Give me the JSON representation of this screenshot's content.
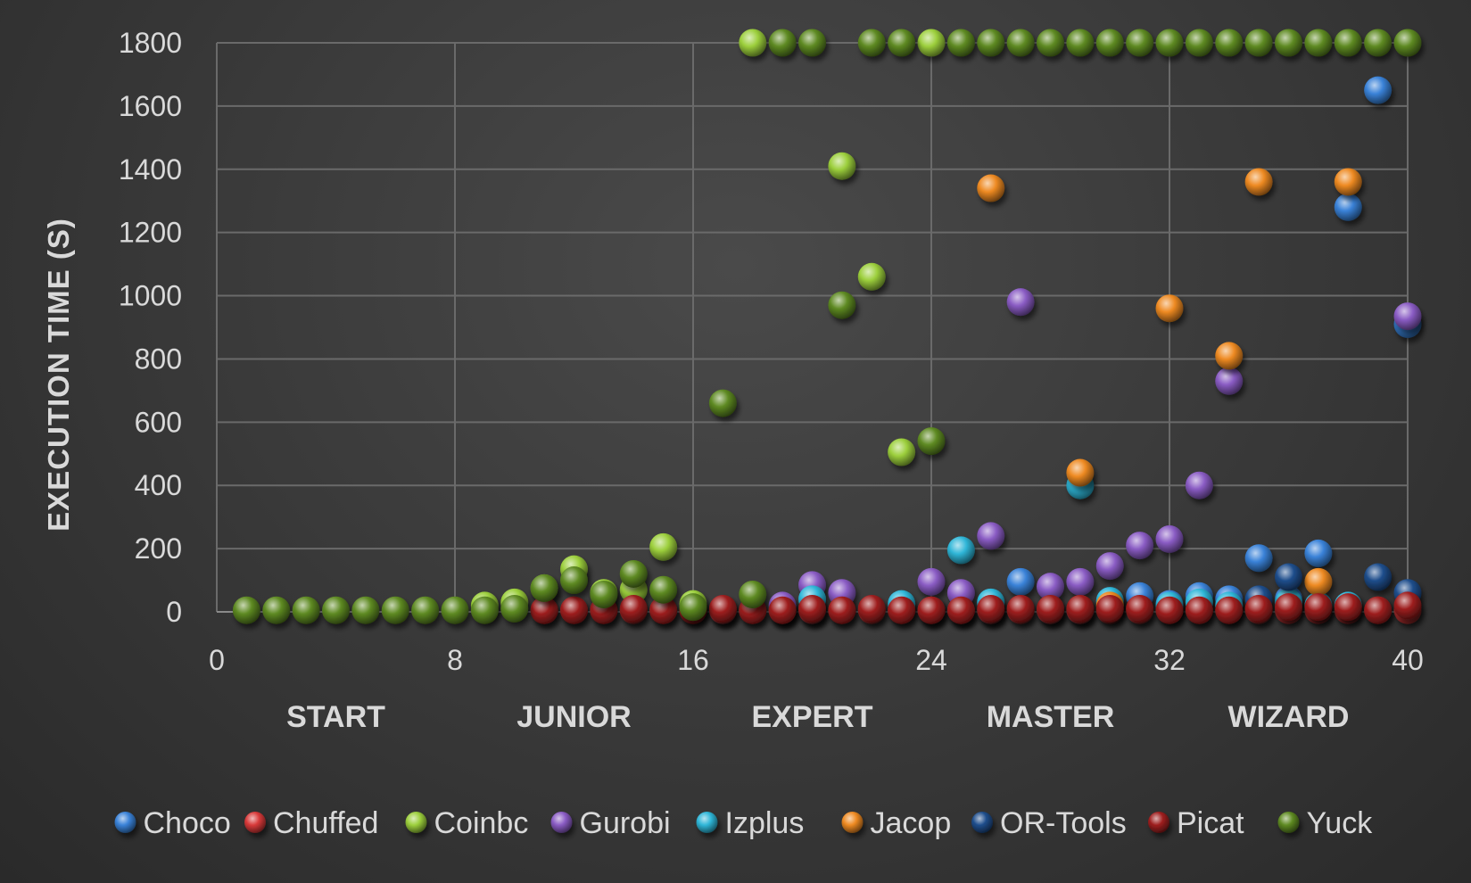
{
  "chart_data": {
    "type": "scatter",
    "title": "",
    "xlabel": "",
    "ylabel": "EXECUTION TIME (S)",
    "xlim": [
      0,
      40
    ],
    "ylim": [
      0,
      1800
    ],
    "xticks": [
      0,
      8,
      16,
      24,
      32,
      40
    ],
    "yticks": [
      0,
      200,
      400,
      600,
      800,
      1000,
      1200,
      1400,
      1600,
      1800
    ],
    "grid": true,
    "legend": "bottom",
    "categories": [
      {
        "label": "START",
        "x": 4
      },
      {
        "label": "JUNIOR",
        "x": 12
      },
      {
        "label": "EXPERT",
        "x": 20
      },
      {
        "label": "MASTER",
        "x": 28
      },
      {
        "label": "WIZARD",
        "x": 36
      }
    ],
    "series": [
      {
        "name": "Choco",
        "color": "#3a82d8",
        "points": [
          [
            17,
            5
          ],
          [
            19,
            5
          ],
          [
            20,
            5
          ],
          [
            24,
            5
          ],
          [
            25,
            5
          ],
          [
            26,
            5
          ],
          [
            27,
            95
          ],
          [
            28,
            5
          ],
          [
            29,
            5
          ],
          [
            30,
            30
          ],
          [
            31,
            50
          ],
          [
            32,
            25
          ],
          [
            33,
            50
          ],
          [
            34,
            40
          ],
          [
            35,
            170
          ],
          [
            36,
            40
          ],
          [
            37,
            185
          ],
          [
            38,
            1280
          ],
          [
            39,
            1650
          ],
          [
            40,
            910
          ]
        ]
      },
      {
        "name": "Chuffed",
        "color": "#d83a3a",
        "points": [
          [
            11,
            5
          ],
          [
            12,
            5
          ],
          [
            13,
            5
          ],
          [
            14,
            5
          ],
          [
            15,
            5
          ],
          [
            16,
            5
          ],
          [
            17,
            5
          ],
          [
            18,
            5
          ],
          [
            19,
            5
          ],
          [
            20,
            5
          ],
          [
            21,
            5
          ],
          [
            22,
            5
          ],
          [
            23,
            5
          ],
          [
            24,
            5
          ],
          [
            25,
            5
          ],
          [
            26,
            5
          ],
          [
            27,
            5
          ],
          [
            28,
            5
          ],
          [
            29,
            5
          ],
          [
            30,
            5
          ],
          [
            31,
            5
          ],
          [
            32,
            5
          ],
          [
            33,
            5
          ],
          [
            34,
            5
          ],
          [
            35,
            5
          ],
          [
            36,
            5
          ],
          [
            37,
            5
          ],
          [
            38,
            5
          ],
          [
            39,
            5
          ],
          [
            40,
            5
          ]
        ]
      },
      {
        "name": "Coinbc",
        "color": "#9ccf3c",
        "points": [
          [
            9,
            20
          ],
          [
            10,
            30
          ],
          [
            11,
            75
          ],
          [
            12,
            135
          ],
          [
            13,
            60
          ],
          [
            14,
            70
          ],
          [
            15,
            205
          ],
          [
            16,
            25
          ],
          [
            18,
            1800
          ],
          [
            21,
            1410
          ],
          [
            22,
            1060
          ],
          [
            23,
            505
          ],
          [
            24,
            1800
          ]
        ]
      },
      {
        "name": "Gurobi",
        "color": "#8a5cc4",
        "points": [
          [
            19,
            20
          ],
          [
            20,
            85
          ],
          [
            21,
            60
          ],
          [
            24,
            95
          ],
          [
            25,
            60
          ],
          [
            26,
            240
          ],
          [
            27,
            980
          ],
          [
            28,
            80
          ],
          [
            29,
            95
          ],
          [
            30,
            145
          ],
          [
            31,
            210
          ],
          [
            32,
            230
          ],
          [
            33,
            400
          ],
          [
            34,
            730
          ],
          [
            40,
            935
          ]
        ]
      },
      {
        "name": "Izplus",
        "color": "#2fb6d8",
        "points": [
          [
            20,
            40
          ],
          [
            23,
            25
          ],
          [
            25,
            195
          ],
          [
            26,
            30
          ],
          [
            29,
            400
          ],
          [
            30,
            35
          ],
          [
            32,
            20
          ],
          [
            33,
            30
          ],
          [
            34,
            20
          ],
          [
            36,
            30
          ],
          [
            37,
            20
          ],
          [
            38,
            20
          ]
        ]
      },
      {
        "name": "Jacop",
        "color": "#ee8a22",
        "points": [
          [
            26,
            1340
          ],
          [
            29,
            440
          ],
          [
            30,
            20
          ],
          [
            32,
            960
          ],
          [
            34,
            810
          ],
          [
            35,
            1360
          ],
          [
            37,
            95
          ],
          [
            38,
            1360
          ]
        ]
      },
      {
        "name": "OR-Tools",
        "color": "#1f4e8c",
        "points": [
          [
            35,
            40
          ],
          [
            36,
            110
          ],
          [
            39,
            110
          ],
          [
            40,
            60
          ]
        ]
      },
      {
        "name": "Picat",
        "color": "#9e1f1f",
        "points": [
          [
            11,
            5
          ],
          [
            12,
            5
          ],
          [
            13,
            5
          ],
          [
            14,
            10
          ],
          [
            15,
            5
          ],
          [
            16,
            5
          ],
          [
            17,
            10
          ],
          [
            18,
            5
          ],
          [
            19,
            5
          ],
          [
            20,
            10
          ],
          [
            21,
            5
          ],
          [
            22,
            10
          ],
          [
            23,
            5
          ],
          [
            24,
            5
          ],
          [
            25,
            5
          ],
          [
            26,
            10
          ],
          [
            27,
            10
          ],
          [
            28,
            10
          ],
          [
            29,
            10
          ],
          [
            30,
            10
          ],
          [
            31,
            10
          ],
          [
            32,
            5
          ],
          [
            33,
            5
          ],
          [
            34,
            5
          ],
          [
            35,
            10
          ],
          [
            36,
            15
          ],
          [
            37,
            15
          ],
          [
            38,
            15
          ],
          [
            39,
            5
          ],
          [
            40,
            20
          ]
        ]
      },
      {
        "name": "Yuck",
        "color": "#5e8a22",
        "points": [
          [
            1,
            5
          ],
          [
            2,
            5
          ],
          [
            3,
            5
          ],
          [
            4,
            5
          ],
          [
            5,
            5
          ],
          [
            6,
            5
          ],
          [
            7,
            5
          ],
          [
            8,
            5
          ],
          [
            9,
            5
          ],
          [
            10,
            10
          ],
          [
            11,
            75
          ],
          [
            12,
            100
          ],
          [
            13,
            55
          ],
          [
            14,
            120
          ],
          [
            15,
            70
          ],
          [
            16,
            15
          ],
          [
            17,
            660
          ],
          [
            18,
            55
          ],
          [
            19,
            1800
          ],
          [
            20,
            1800
          ],
          [
            21,
            970
          ],
          [
            22,
            1800
          ],
          [
            23,
            1800
          ],
          [
            24,
            540
          ],
          [
            25,
            1800
          ],
          [
            26,
            1800
          ],
          [
            27,
            1800
          ],
          [
            28,
            1800
          ],
          [
            29,
            1800
          ],
          [
            30,
            1800
          ],
          [
            31,
            1800
          ],
          [
            32,
            1800
          ],
          [
            33,
            1800
          ],
          [
            34,
            1800
          ],
          [
            35,
            1800
          ],
          [
            36,
            1800
          ],
          [
            37,
            1800
          ],
          [
            38,
            1800
          ],
          [
            39,
            1800
          ],
          [
            40,
            1800
          ]
        ]
      }
    ]
  }
}
